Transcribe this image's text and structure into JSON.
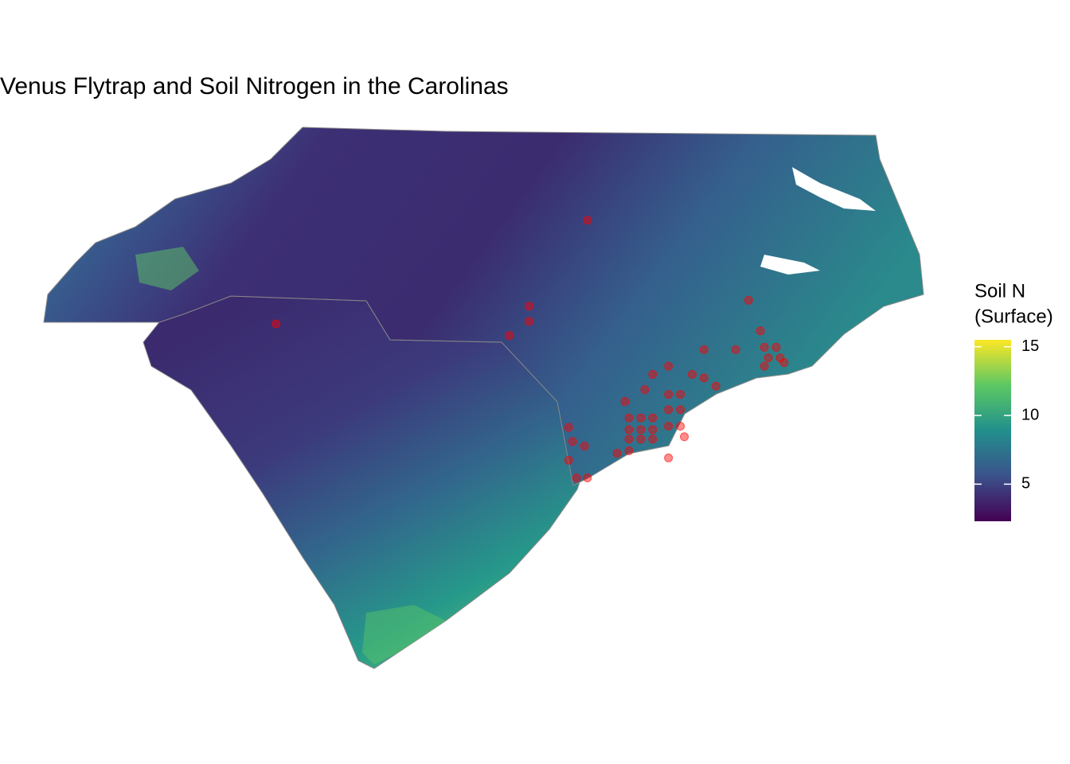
{
  "title": "Venus Flytrap and Soil Nitrogen in the Carolinas",
  "legend": {
    "title": [
      "Soil N",
      "(Surface)"
    ],
    "range": [
      2.3,
      15.5
    ],
    "ticks": [
      5,
      10,
      15
    ],
    "colors": [
      "#440154",
      "#3b528b",
      "#21908c",
      "#5dc863",
      "#fde725"
    ]
  },
  "extent": {
    "lon": [
      -84.35,
      -75.45
    ],
    "lat": [
      32.0,
      36.6
    ]
  },
  "point_color": "#ff0000",
  "points": [
    [
      -78.85,
      35.81
    ],
    [
      -82.0,
      34.93
    ],
    [
      -79.44,
      35.08
    ],
    [
      -79.44,
      34.95
    ],
    [
      -79.64,
      34.83
    ],
    [
      -77.22,
      35.13
    ],
    [
      -77.1,
      34.87
    ],
    [
      -79.04,
      34.05
    ],
    [
      -79.0,
      33.93
    ],
    [
      -78.88,
      33.89
    ],
    [
      -79.04,
      33.77
    ],
    [
      -78.96,
      33.62
    ],
    [
      -78.85,
      33.62
    ],
    [
      -78.55,
      33.83
    ],
    [
      -78.43,
      33.85
    ],
    [
      -78.03,
      33.79
    ],
    [
      -78.47,
      34.27
    ],
    [
      -78.27,
      34.37
    ],
    [
      -78.19,
      34.5
    ],
    [
      -78.03,
      34.57
    ],
    [
      -77.67,
      34.71
    ],
    [
      -77.55,
      34.4
    ],
    [
      -77.35,
      34.71
    ],
    [
      -77.06,
      34.57
    ],
    [
      -76.86,
      34.6
    ],
    [
      -78.43,
      34.13
    ],
    [
      -78.31,
      34.13
    ],
    [
      -78.19,
      34.13
    ],
    [
      -78.43,
      34.03
    ],
    [
      -78.31,
      34.03
    ],
    [
      -78.19,
      34.03
    ],
    [
      -78.43,
      33.95
    ],
    [
      -78.31,
      33.95
    ],
    [
      -78.19,
      33.95
    ],
    [
      -78.03,
      34.33
    ],
    [
      -77.91,
      34.33
    ],
    [
      -78.03,
      34.2
    ],
    [
      -77.91,
      34.2
    ],
    [
      -78.03,
      34.06
    ],
    [
      -77.91,
      34.06
    ],
    [
      -77.87,
      33.97
    ],
    [
      -77.79,
      34.5
    ],
    [
      -77.67,
      34.47
    ],
    [
      -77.06,
      34.73
    ],
    [
      -76.94,
      34.73
    ],
    [
      -77.02,
      34.64
    ],
    [
      -76.9,
      34.64
    ]
  ]
}
